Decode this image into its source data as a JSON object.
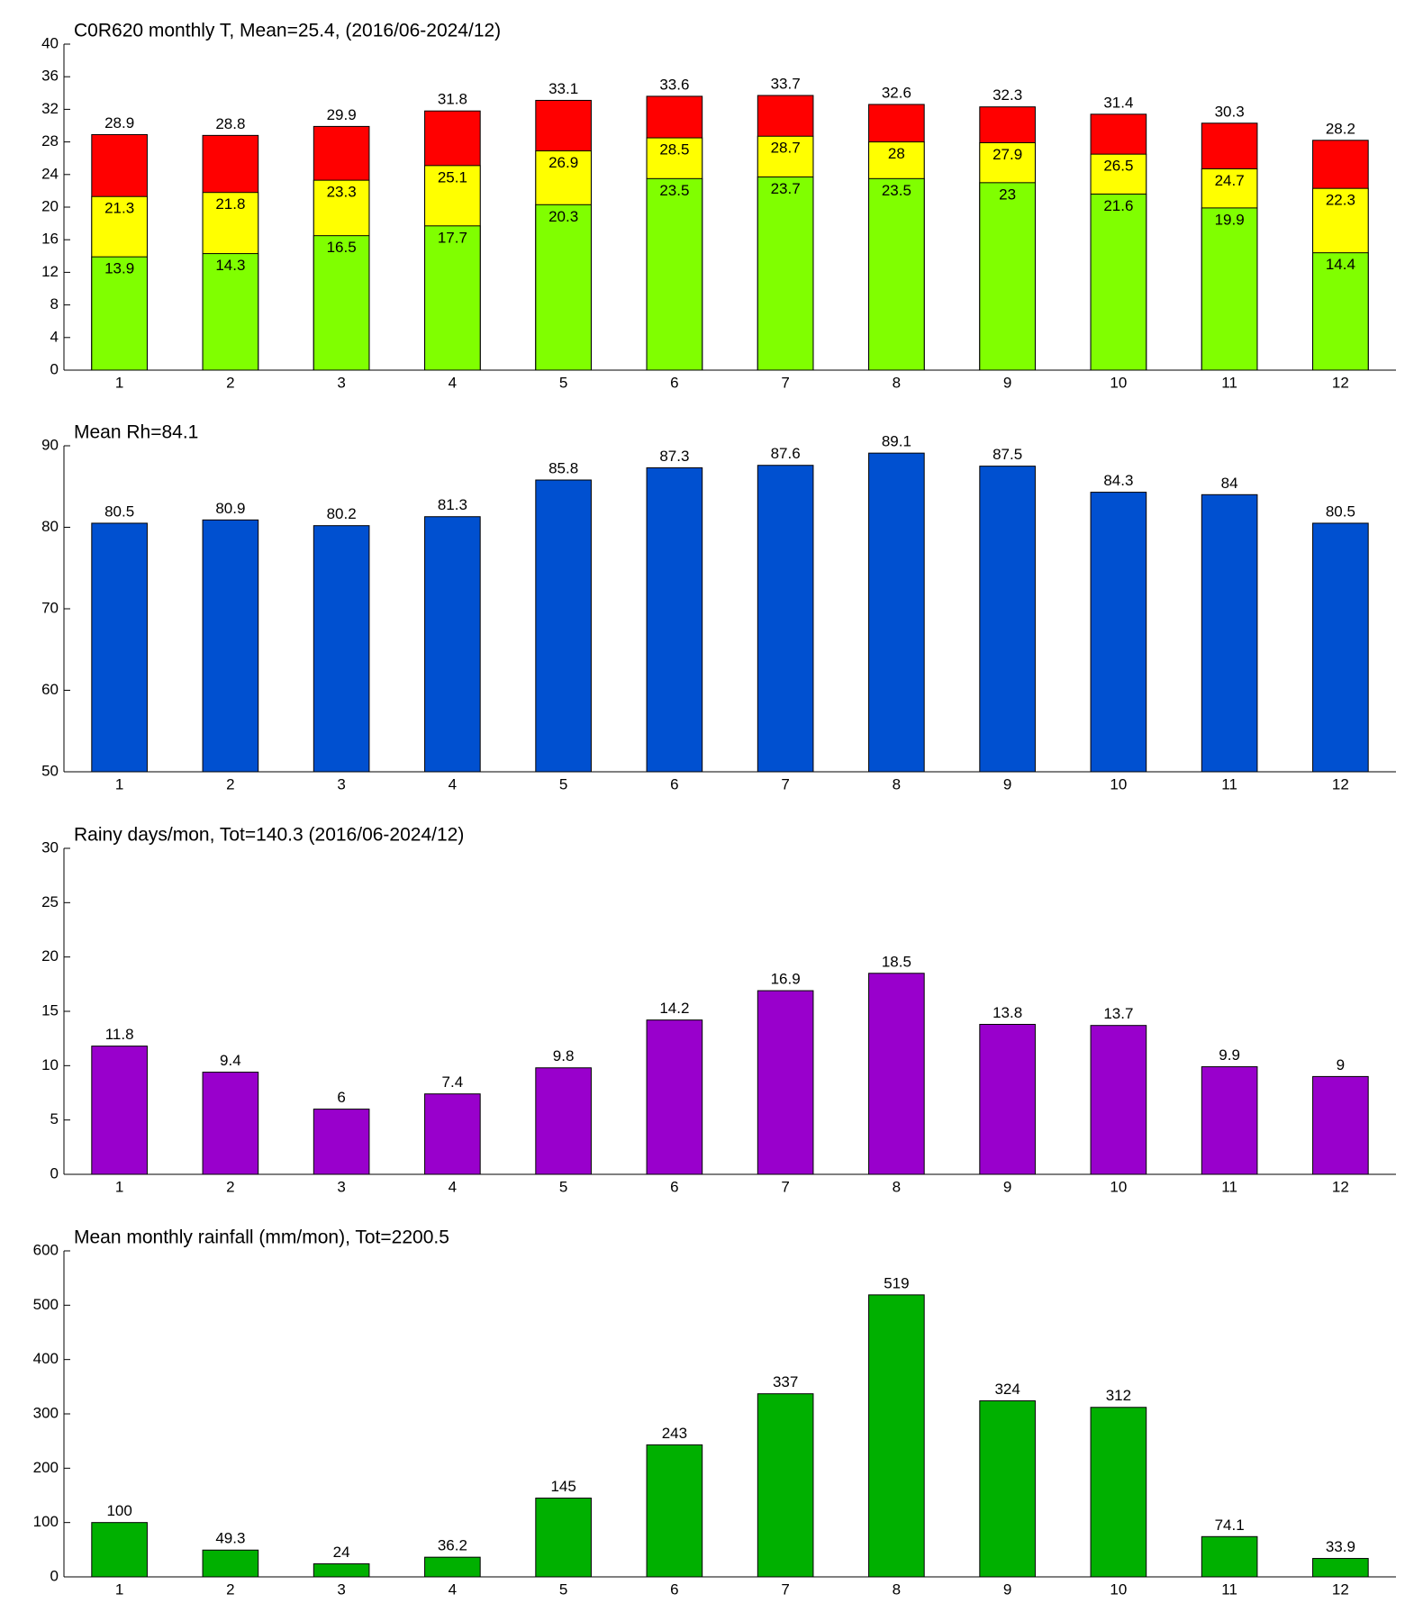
{
  "chart_data": [
    {
      "type": "bar",
      "title": "C0R620 monthly T, Mean=25.4, (2016/06-2024/12)",
      "categories": [
        1,
        2,
        3,
        4,
        5,
        6,
        7,
        8,
        9,
        10,
        11,
        12
      ],
      "series": [
        {
          "color": "#80ff00",
          "values": [
            13.9,
            14.3,
            16.5,
            17.7,
            20.3,
            23.5,
            23.7,
            23.5,
            23,
            21.6,
            19.9,
            14.4
          ]
        },
        {
          "color": "#ffff00",
          "values": [
            21.3,
            21.8,
            23.3,
            25.1,
            26.9,
            28.5,
            28.7,
            28,
            27.9,
            26.5,
            24.7,
            22.3
          ]
        },
        {
          "color": "#ff0000",
          "values": [
            28.9,
            28.8,
            29.9,
            31.8,
            33.1,
            33.6,
            33.7,
            32.6,
            32.3,
            31.4,
            30.3,
            28.2
          ]
        }
      ],
      "ylim": [
        0,
        40
      ],
      "yticks": [
        0,
        4,
        8,
        12,
        16,
        20,
        24,
        28,
        32,
        36,
        40
      ]
    },
    {
      "type": "bar",
      "title": "Mean Rh=84.1",
      "categories": [
        1,
        2,
        3,
        4,
        5,
        6,
        7,
        8,
        9,
        10,
        11,
        12
      ],
      "series": [
        {
          "color": "#0050d0",
          "values": [
            80.5,
            80.9,
            80.2,
            81.3,
            85.8,
            87.3,
            87.6,
            89.1,
            87.5,
            84.3,
            84,
            80.5
          ]
        }
      ],
      "ylim": [
        50,
        90
      ],
      "yticks": [
        50,
        60,
        70,
        80,
        90
      ]
    },
    {
      "type": "bar",
      "title": "Rainy days/mon, Tot=140.3 (2016/06-2024/12)",
      "categories": [
        1,
        2,
        3,
        4,
        5,
        6,
        7,
        8,
        9,
        10,
        11,
        12
      ],
      "series": [
        {
          "color": "#9900cc",
          "values": [
            11.8,
            9.4,
            6,
            7.4,
            9.8,
            14.2,
            16.9,
            18.5,
            13.8,
            13.7,
            9.9,
            9
          ]
        }
      ],
      "ylim": [
        0,
        30
      ],
      "yticks": [
        0,
        5,
        10,
        15,
        20,
        25,
        30
      ]
    },
    {
      "type": "bar",
      "title": "Mean monthly rainfall (mm/mon), Tot=2200.5",
      "categories": [
        1,
        2,
        3,
        4,
        5,
        6,
        7,
        8,
        9,
        10,
        11,
        12
      ],
      "series": [
        {
          "color": "#00b000",
          "values": [
            100,
            49.3,
            24,
            36.2,
            145,
            243,
            337,
            519,
            324,
            312,
            74.1,
            33.9
          ]
        }
      ],
      "ylim": [
        0,
        600
      ],
      "yticks": [
        0,
        100,
        200,
        300,
        400,
        500,
        600
      ]
    }
  ]
}
